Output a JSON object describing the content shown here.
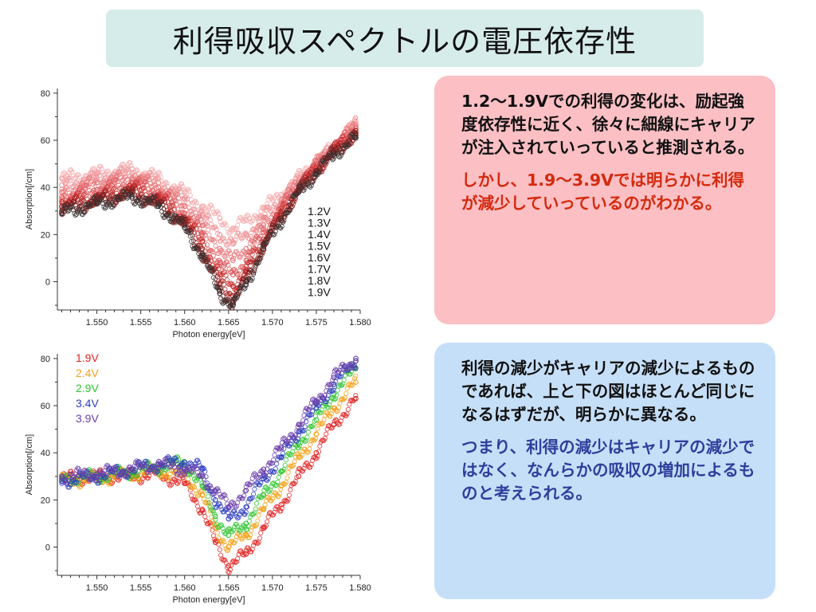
{
  "title": "利得吸収スペクトルの電圧依存性",
  "chart_data": [
    {
      "type": "scatter",
      "ylabel": "Absorption[/cm]",
      "xlabel": "Photon energy[eV]",
      "xlim": [
        1.5455,
        1.58
      ],
      "ylim": [
        -12,
        82
      ],
      "xticks": [
        "1.550",
        "1.555",
        "1.560",
        "1.565",
        "1.570",
        "1.575",
        "1.580"
      ],
      "yticks": [
        "80",
        "60",
        "40",
        "20",
        "0"
      ],
      "legend_position": "right-center",
      "series": [
        {
          "name": "1.2V",
          "color": "#f4aeb0",
          "x": [
            1.546,
            1.55,
            1.554,
            1.557,
            1.56,
            1.562,
            1.564,
            1.5655,
            1.567,
            1.569,
            1.571,
            1.573,
            1.575,
            1.577,
            1.5795
          ],
          "y": [
            44,
            46,
            48,
            44,
            38,
            32,
            27,
            22,
            26,
            31,
            37,
            44,
            51,
            57,
            68
          ]
        },
        {
          "name": "1.3V",
          "color": "#ee9498",
          "x": [
            1.546,
            1.55,
            1.554,
            1.557,
            1.56,
            1.562,
            1.564,
            1.5655,
            1.567,
            1.569,
            1.571,
            1.573,
            1.575,
            1.577,
            1.5795
          ],
          "y": [
            41,
            44,
            46,
            42,
            35,
            28,
            20,
            16,
            20,
            27,
            35,
            43,
            50,
            57,
            67
          ]
        },
        {
          "name": "1.4V",
          "color": "#e77a7e",
          "x": [
            1.546,
            1.55,
            1.554,
            1.557,
            1.56,
            1.562,
            1.564,
            1.5655,
            1.567,
            1.569,
            1.571,
            1.573,
            1.575,
            1.577,
            1.5795
          ],
          "y": [
            38,
            42,
            44,
            40,
            32,
            24,
            14,
            9,
            14,
            24,
            33,
            42,
            50,
            57,
            66
          ]
        },
        {
          "name": "1.5V",
          "color": "#dd5a5e",
          "x": [
            1.546,
            1.55,
            1.554,
            1.557,
            1.56,
            1.562,
            1.564,
            1.5655,
            1.567,
            1.569,
            1.571,
            1.573,
            1.575,
            1.577,
            1.5795
          ],
          "y": [
            36,
            39,
            42,
            38,
            29,
            20,
            8,
            3,
            9,
            21,
            31,
            41,
            49,
            56,
            65
          ]
        },
        {
          "name": "1.6V",
          "color": "#cc3434",
          "x": [
            1.546,
            1.55,
            1.554,
            1.557,
            1.56,
            1.562,
            1.564,
            1.5655,
            1.567,
            1.569,
            1.571,
            1.573,
            1.575,
            1.577,
            1.5795
          ],
          "y": [
            34,
            36,
            40,
            36,
            27,
            17,
            3,
            -2,
            5,
            18,
            29,
            40,
            48,
            56,
            64
          ]
        },
        {
          "name": "1.7V",
          "color": "#a82424",
          "x": [
            1.546,
            1.55,
            1.554,
            1.557,
            1.56,
            1.562,
            1.564,
            1.5655,
            1.567,
            1.569,
            1.571,
            1.573,
            1.575,
            1.577,
            1.5795
          ],
          "y": [
            32,
            35,
            38,
            34,
            25,
            14,
            -1,
            -6,
            2,
            16,
            28,
            39,
            47,
            55,
            63
          ]
        },
        {
          "name": "1.8V",
          "color": "#6e1f1f",
          "x": [
            1.546,
            1.55,
            1.554,
            1.557,
            1.56,
            1.562,
            1.564,
            1.5655,
            1.567,
            1.569,
            1.571,
            1.573,
            1.575,
            1.577,
            1.5795
          ],
          "y": [
            30,
            34,
            37,
            33,
            24,
            12,
            -4,
            -9,
            0,
            15,
            27,
            38,
            47,
            55,
            62
          ]
        },
        {
          "name": "1.9V",
          "color": "#3a3030",
          "x": [
            1.546,
            1.55,
            1.554,
            1.557,
            1.56,
            1.562,
            1.564,
            1.5655,
            1.567,
            1.569,
            1.571,
            1.573,
            1.575,
            1.577,
            1.5795
          ],
          "y": [
            29,
            33,
            36,
            32,
            23,
            11,
            -5,
            -10,
            -1,
            14,
            26,
            38,
            46,
            54,
            61
          ]
        }
      ]
    },
    {
      "type": "scatter",
      "ylabel": "Absorption[/cm]",
      "xlabel": "Photon energy[eV]",
      "xlim": [
        1.5455,
        1.58
      ],
      "ylim": [
        -12,
        82
      ],
      "xticks": [
        "1.550",
        "1.555",
        "1.560",
        "1.565",
        "1.570",
        "1.575",
        "1.580"
      ],
      "yticks": [
        "80",
        "60",
        "40",
        "20",
        "0"
      ],
      "legend_position": "top-left",
      "series": [
        {
          "name": "1.9V",
          "color": "#e02424",
          "x": [
            1.546,
            1.55,
            1.554,
            1.557,
            1.56,
            1.562,
            1.5635,
            1.565,
            1.567,
            1.569,
            1.571,
            1.573,
            1.575,
            1.577,
            1.5795
          ],
          "y": [
            29,
            30,
            30,
            31,
            27,
            16,
            2,
            -8,
            -3,
            8,
            18,
            30,
            40,
            52,
            63
          ]
        },
        {
          "name": "2.4V",
          "color": "#f2a21a",
          "x": [
            1.546,
            1.55,
            1.554,
            1.557,
            1.56,
            1.562,
            1.5635,
            1.565,
            1.567,
            1.569,
            1.571,
            1.573,
            1.575,
            1.577,
            1.5795
          ],
          "y": [
            28,
            29,
            31,
            32,
            31,
            22,
            8,
            0,
            5,
            16,
            26,
            38,
            48,
            59,
            70
          ]
        },
        {
          "name": "2.9V",
          "color": "#31c431",
          "x": [
            1.546,
            1.55,
            1.554,
            1.557,
            1.56,
            1.562,
            1.5635,
            1.565,
            1.567,
            1.569,
            1.571,
            1.573,
            1.575,
            1.577,
            1.5795
          ],
          "y": [
            29,
            30,
            32,
            34,
            36,
            26,
            13,
            5,
            10,
            22,
            32,
            44,
            54,
            65,
            76
          ]
        },
        {
          "name": "3.4V",
          "color": "#2d3cc0",
          "x": [
            1.546,
            1.55,
            1.554,
            1.557,
            1.56,
            1.562,
            1.5635,
            1.565,
            1.567,
            1.569,
            1.571,
            1.573,
            1.575,
            1.577,
            1.5795
          ],
          "y": [
            28,
            30,
            33,
            35,
            36,
            33,
            20,
            12,
            17,
            29,
            38,
            49,
            59,
            69,
            79
          ]
        },
        {
          "name": "3.9V",
          "color": "#6a3ea8",
          "x": [
            1.546,
            1.55,
            1.554,
            1.557,
            1.56,
            1.562,
            1.5635,
            1.565,
            1.567,
            1.569,
            1.571,
            1.573,
            1.575,
            1.577,
            1.5795
          ],
          "y": [
            30,
            31,
            33,
            35,
            33,
            30,
            24,
            17,
            24,
            33,
            42,
            52,
            62,
            72,
            80
          ]
        }
      ]
    }
  ],
  "note_top": {
    "paragraph1": "1.2～1.9Vでの利得の変化は、励起強度依存性に近く、徐々に細線にキャリアが注入されていっていると推測される。",
    "paragraph2": "しかし、1.9～3.9Vでは明らかに利得が減少していっているのがわかる。"
  },
  "note_bottom": {
    "paragraph1": "利得の減少がキャリアの減少によるものであれば、上と下の図はほとんど同じになるはずだが、明らかに異なる。",
    "paragraph2": "つまり、利得の減少はキャリアの減少ではなく、なんらかの吸収の増加によるものと考えられる。"
  }
}
